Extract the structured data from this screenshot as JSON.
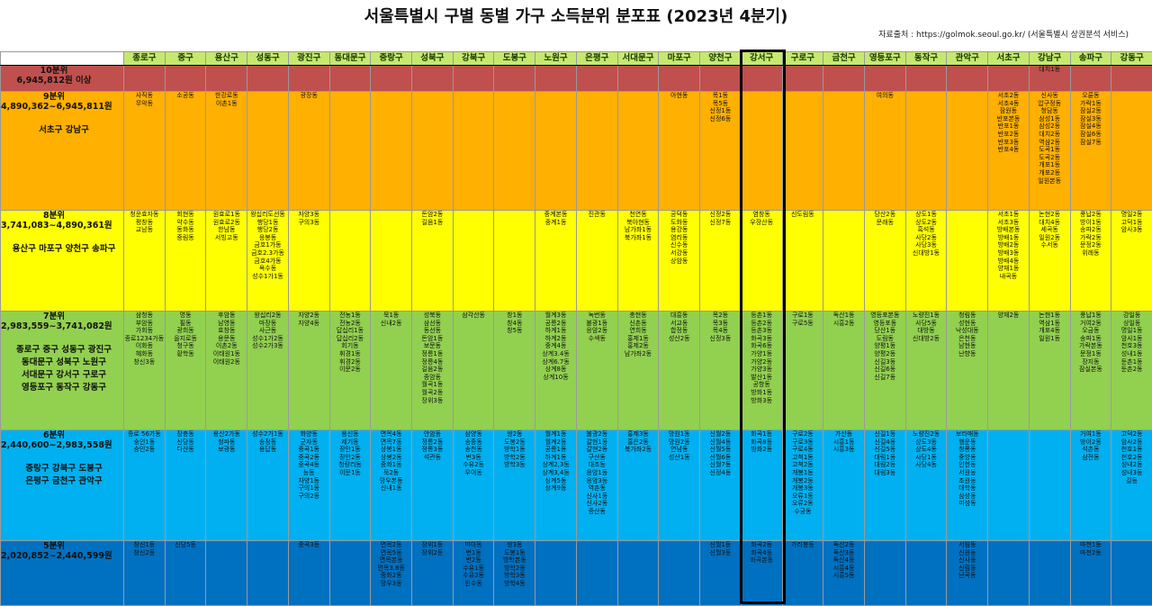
{
  "title": "서울특별시 구별 동별 가구 소득분위 분포표 (2023년 4분기)",
  "source": "자료출처 : https://golmok.seoul.go.kr/ (서울특별시 상권분석 서비스)",
  "districts": [
    "종로구",
    "중구",
    "용산구",
    "성동구",
    "광진구",
    "동대문구",
    "중랑구",
    "성북구",
    "강북구",
    "도봉구",
    "노원구",
    "은평구",
    "서대문구",
    "마포구",
    "양천구",
    "강서구",
    "구로구",
    "금천구",
    "영등포구",
    "동작구",
    "관악구",
    "서초구",
    "강남구",
    "송파구",
    "강동구"
  ],
  "highlight_district": "강서구",
  "bands": [
    {
      "key": "b10",
      "title": "10분위",
      "range": "6,945,812원 이상",
      "districts": [],
      "cells": [
        [],
        [],
        [],
        [],
        [],
        [],
        [],
        [],
        [],
        [],
        [],
        [],
        [],
        [],
        [],
        [],
        [],
        [],
        [],
        [],
        [],
        [],
        [
          "대치1동"
        ],
        [],
        []
      ]
    },
    {
      "key": "b9",
      "title": "9분위",
      "range": "4,890,362~6,945,811원",
      "districts": [
        "서초구 강남구"
      ],
      "cells": [
        [
          "사직동",
          "무악동"
        ],
        [
          "소공동"
        ],
        [
          "한강로동",
          "이촌1동"
        ],
        [],
        [
          "광장동"
        ],
        [],
        [],
        [],
        [],
        [],
        [],
        [],
        [],
        [
          "아현동"
        ],
        [
          "목1동",
          "목5동",
          "신정1동",
          "신정6동"
        ],
        [],
        [],
        [],
        [
          "여의동"
        ],
        [],
        [],
        [
          "서초2동",
          "서초4동",
          "잠원동",
          "반포본동",
          "반포1동",
          "반포2동",
          "반포3동",
          "반포4동"
        ],
        [
          "신사동",
          "압구정동",
          "청담동",
          "삼성1동",
          "삼성2동",
          "대치2동",
          "역삼2동",
          "도곡1동",
          "도곡2동",
          "개포1동",
          "개포2동",
          "일원본동"
        ],
        [
          "오륜동",
          "가락1동",
          "잠실2동",
          "잠실3동",
          "잠실4동",
          "잠실6동",
          "잠실7동"
        ],
        []
      ]
    },
    {
      "key": "b8",
      "title": "8분위",
      "range": "3,741,083~4,890,361원",
      "districts": [
        "용산구 마포구 양천구 송파구"
      ],
      "cells": [
        [
          "청운효자동",
          "평창동",
          "교남동"
        ],
        [
          "회현동",
          "약수동",
          "동화동",
          "중림동"
        ],
        [
          "원효로1동",
          "원효로2동",
          "한남동",
          "서빙고동"
        ],
        [
          "왕십리도선동",
          "행당1동",
          "행당2동",
          "응봉동",
          "금호1가동",
          "금호2.3가동",
          "금호4가동",
          "옥수동",
          "성수1가1동"
        ],
        [
          "자양3동",
          "구의3동"
        ],
        [],
        [],
        [
          "돈암2동",
          "길음1동"
        ],
        [],
        [],
        [
          "중계본동",
          "중계1동"
        ],
        [
          "진관동"
        ],
        [
          "천연동",
          "북아현동",
          "남가좌1동",
          "북가좌1동"
        ],
        [
          "공덕동",
          "도화동",
          "용강동",
          "염리동",
          "신수동",
          "서강동",
          "상암동"
        ],
        [
          "신정2동",
          "신정7동"
        ],
        [
          "염창동",
          "우장산동"
        ],
        [
          "신도림동"
        ],
        [],
        [
          "당산2동",
          "문래동"
        ],
        [
          "상도1동",
          "상도2동",
          "흑석동",
          "사당2동",
          "사당3동",
          "신대방1동"
        ],
        [],
        [
          "서초1동",
          "서초3동",
          "방배본동",
          "방배1동",
          "방배2동",
          "방배3동",
          "방배4동",
          "양재1동",
          "내곡동"
        ],
        [
          "논현2동",
          "대치4동",
          "세곡동",
          "일원2동",
          "수서동"
        ],
        [
          "풍납2동",
          "방이1동",
          "송파2동",
          "가락2동",
          "문정2동",
          "위례동"
        ],
        [
          "명일2동",
          "고덕1동",
          "암사3동"
        ]
      ]
    },
    {
      "key": "b7",
      "title": "7분위",
      "range": "2,983,559~3,741,082원",
      "districts": [
        "종로구 중구 성동구 광진구",
        "동대문구 성북구 노원구",
        "서대문구 강서구 구로구",
        "영등포구 동작구 강동구"
      ],
      "cells": [
        [
          "삼청동",
          "부암동",
          "가회동",
          "종로1234가동",
          "이화동",
          "혜화동",
          "창신3동"
        ],
        [
          "명동",
          "필동",
          "광희동",
          "을지로동",
          "청구동",
          "황학동"
        ],
        [
          "후암동",
          "남영동",
          "효창동",
          "용문동",
          "이촌2동",
          "이태원1동",
          "이태원2동"
        ],
        [
          "왕십리2동",
          "마장동",
          "사근동",
          "성수1가2동",
          "성수2가3동"
        ],
        [
          "자양2동",
          "자양4동"
        ],
        [
          "전농1동",
          "전농2동",
          "답십리1동",
          "답십리2동",
          "회기동",
          "휘경1동",
          "휘경2동",
          "이문2동"
        ],
        [
          "묵1동",
          "신내2동"
        ],
        [
          "성북동",
          "삼선동",
          "동선동",
          "돈암1동",
          "보문동",
          "정릉1동",
          "정릉4동",
          "길음2동",
          "종암동",
          "월곡1동",
          "월곡2동",
          "장위3동"
        ],
        [
          "삼각산동"
        ],
        [
          "창1동",
          "창4동",
          "창5동"
        ],
        [
          "월계3동",
          "공릉2동",
          "하계1동",
          "하계2동",
          "중계4동",
          "상계3.4동",
          "상계6.7동",
          "상계8동",
          "상계10동"
        ],
        [
          "녹번동",
          "불광1동",
          "응암2동",
          "수색동"
        ],
        [
          "충현동",
          "신촌동",
          "연희동",
          "홍제1동",
          "홍제2동",
          "남가좌2동"
        ],
        [
          "대흥동",
          "서교동",
          "합정동",
          "성산2동"
        ],
        [
          "목2동",
          "목3동",
          "목4동",
          "신정3동"
        ],
        [
          "등촌1동",
          "등촌2동",
          "등촌3동",
          "화곡3동",
          "화곡6동",
          "가양1동",
          "가양2동",
          "가양3동",
          "발산1동",
          "공항동",
          "방화1동",
          "방화3동"
        ],
        [
          "구로1동",
          "구로5동"
        ],
        [
          "독산1동",
          "시흥2동"
        ],
        [
          "영등포본동",
          "영등포동",
          "당산1동",
          "도림동",
          "양평1동",
          "양평2동",
          "신길3동",
          "신길6동",
          "신길7동"
        ],
        [
          "노량진1동",
          "사당5동",
          "대방동",
          "신대방2동"
        ],
        [
          "청림동",
          "성현동",
          "낙성대동",
          "은천동",
          "남현동",
          "난향동"
        ],
        [
          "양재2동"
        ],
        [
          "논현1동",
          "역삼1동",
          "개포4동",
          "일원1동"
        ],
        [
          "풍납1동",
          "거여2동",
          "오금동",
          "송파1동",
          "가락본동",
          "문정1동",
          "장지동",
          "잠실본동"
        ],
        [
          "강일동",
          "상일동",
          "명일1동",
          "암사1동",
          "천호3동",
          "성내1동",
          "둔촌1동",
          "둔촌2동"
        ]
      ]
    },
    {
      "key": "b6",
      "title": "6분위",
      "range": "2,440,600~2,983,558원",
      "districts": [
        "중랑구 강북구 도봉구",
        "은평구 금천구 관악구"
      ],
      "cells": [
        [
          "종로 56가동",
          "숭인1동",
          "숭인2동"
        ],
        [
          "장충동",
          "신당동",
          "다산동"
        ],
        [
          "용산2가동",
          "청파동",
          "보광동"
        ],
        [
          "성수2가1동",
          "송정동",
          "용답동"
        ],
        [
          "화양동",
          "군자동",
          "중곡1동",
          "중곡2동",
          "중곡4동",
          "능동",
          "자양1동",
          "구의1동",
          "구의2동"
        ],
        [
          "용신동",
          "제기동",
          "장안1동",
          "장안2동",
          "청량리동",
          "이문1동"
        ],
        [
          "면목4동",
          "면목7동",
          "상봉1동",
          "상봉2동",
          "중화1동",
          "묵2동",
          "망우본동",
          "신내1동"
        ],
        [
          "안암동",
          "정릉2동",
          "정릉3동",
          "석관동"
        ],
        [
          "삼양동",
          "송중동",
          "송천동",
          "번3동",
          "수유2동",
          "우이동"
        ],
        [
          "쌍2동",
          "도봉2동",
          "방학1동",
          "방학2동",
          "방학3동"
        ],
        [
          "월계1동",
          "월계2동",
          "공릉1동",
          "하계1동",
          "상계2,3동",
          "상계3,4동",
          "상계5동",
          "상계9동"
        ],
        [
          "불광2동",
          "갈현1동",
          "갈현2동",
          "구산동",
          "대조동",
          "응암1동",
          "응암3동",
          "역촌동",
          "신사1동",
          "신사2동",
          "증산동"
        ],
        [
          "홍제3동",
          "홍은2동",
          "북가좌2동"
        ],
        [
          "망원1동",
          "망원2동",
          "연남동",
          "성산1동"
        ],
        [
          "신월2동",
          "신월4동",
          "신월5동",
          "신월6동",
          "신월7동",
          "신정4동"
        ],
        [
          "화곡1동",
          "화곡8동",
          "방화2동"
        ],
        [
          "구로2동",
          "구로3동",
          "구로4동",
          "고척1동",
          "고척2동",
          "개봉1동",
          "개봉2동",
          "개봉3동",
          "오류1동",
          "오류2동",
          "수궁동"
        ],
        [
          "가산동",
          "시흥1동",
          "시흥3동"
        ],
        [
          "신길1동",
          "신길4동",
          "신길5동",
          "대림1동",
          "대림2동",
          "대림3동"
        ],
        [
          "노량진2동",
          "상도3동",
          "상도4동",
          "사당1동",
          "사당4동"
        ],
        [
          "보라매동",
          "행운동",
          "청룡동",
          "중앙동",
          "인헌동",
          "서원동",
          "조원동",
          "대학동",
          "삼성동",
          "미성동"
        ],
        [],
        [],
        [
          "거여1동",
          "방이2동",
          "석촌동",
          "삼전동"
        ],
        [
          "고덕2동",
          "암사2동",
          "천호1동",
          "천호2동",
          "성내2동",
          "성내3동",
          "길동"
        ]
      ]
    },
    {
      "key": "b5",
      "title": "5분위",
      "range": "2,020,852~2,440,599원",
      "districts": [],
      "cells": [
        [
          "창신1동",
          "창신2동"
        ],
        [
          "신당5동"
        ],
        [],
        [],
        [
          "중곡3동"
        ],
        [],
        [
          "면목2동",
          "면목5동",
          "면목본동",
          "면목3,8동",
          "중화2동",
          "망우3동"
        ],
        [
          "장위1동",
          "장위2동"
        ],
        [
          "미아동",
          "번1동",
          "번2동",
          "수유1동",
          "수유3동",
          "인수동"
        ],
        [
          "쌍3동",
          "도봉1동",
          "방학본동",
          "방학2동",
          "방학3동",
          "방학4동"
        ],
        [],
        [],
        [],
        [],
        [
          "신월1동",
          "신월3동"
        ],
        [
          "화곡2동",
          "화곡4동",
          "화곡본동"
        ],
        [
          "가리봉동"
        ],
        [
          "독산2동",
          "독산3동",
          "독산4동",
          "시흥4동",
          "시흥5동"
        ],
        [],
        [],
        [
          "서림동",
          "신원동",
          "신사동",
          "신림동",
          "난곡동"
        ],
        [],
        [],
        [
          "마천1동",
          "마천2동"
        ],
        []
      ]
    }
  ]
}
